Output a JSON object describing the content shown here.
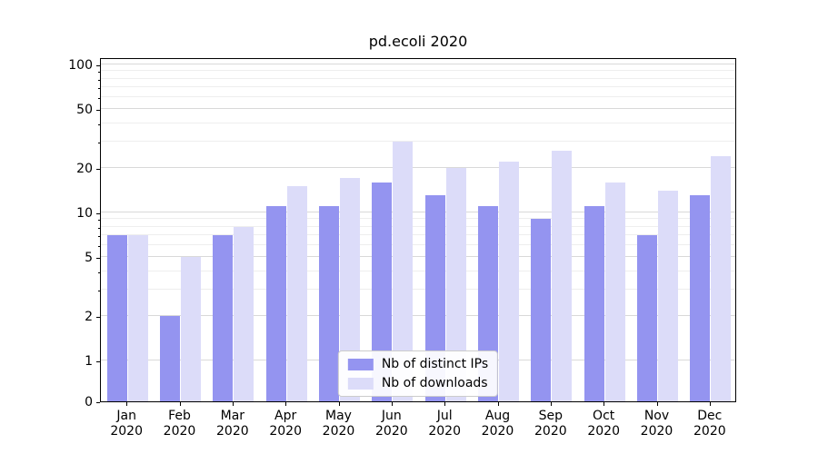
{
  "title": "pd.ecoli 2020",
  "chart_data": {
    "type": "bar",
    "title": "pd.ecoli 2020",
    "x_categories_months": [
      "Jan",
      "Feb",
      "Mar",
      "Apr",
      "May",
      "Jun",
      "Jul",
      "Aug",
      "Sep",
      "Oct",
      "Nov",
      "Dec"
    ],
    "x_year": "2020",
    "series": [
      {
        "name": "Nb of distinct IPs",
        "color": "#9494f0",
        "values": [
          7,
          2,
          7,
          11,
          11,
          16,
          13,
          11,
          9,
          11,
          7,
          13
        ]
      },
      {
        "name": "Nb of downloads",
        "color": "#dcdcf9",
        "values": [
          7,
          5,
          8,
          15,
          17,
          30,
          20,
          22,
          26,
          16,
          14,
          24
        ]
      }
    ],
    "yscale": "symlog",
    "ylim": [
      0,
      110
    ],
    "yticks": [
      0,
      1,
      2,
      5,
      10,
      20,
      50,
      100
    ],
    "minor_yticks": [
      3,
      4,
      6,
      7,
      8,
      9,
      30,
      40,
      60,
      70,
      80,
      90
    ],
    "grid": true,
    "legend_position": "lower center"
  }
}
